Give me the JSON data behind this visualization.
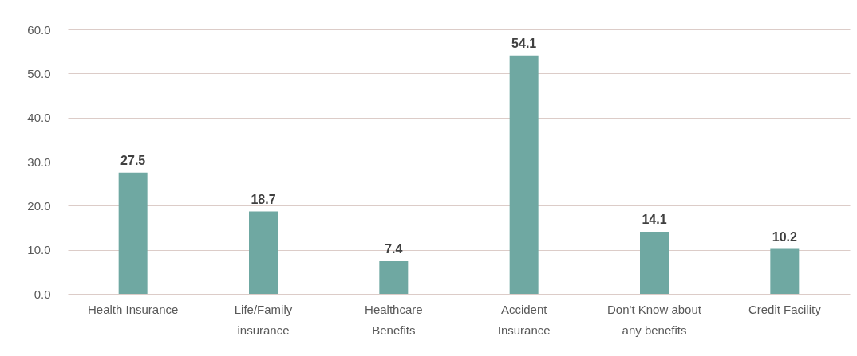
{
  "chart_data": {
    "type": "bar",
    "categories": [
      "Health Insurance",
      "Life/Family insurance",
      "Healthcare Benefits",
      "Accident Insurance",
      "Don't Know about any benefits",
      "Credit Facility"
    ],
    "values": [
      27.5,
      18.7,
      7.4,
      54.1,
      14.1,
      10.2
    ],
    "color": "#6fa8a2",
    "ylim": [
      0,
      60
    ],
    "yticks": [
      {
        "value": 0,
        "label": "0.0"
      },
      {
        "value": 10,
        "label": "10.0"
      },
      {
        "value": 20,
        "label": "20.0"
      },
      {
        "value": 30,
        "label": "30.0"
      },
      {
        "value": 40,
        "label": "40.0"
      },
      {
        "value": 50,
        "label": "50.0"
      },
      {
        "value": 60,
        "label": "60.0"
      }
    ],
    "grid": "y",
    "data_labels": true
  }
}
